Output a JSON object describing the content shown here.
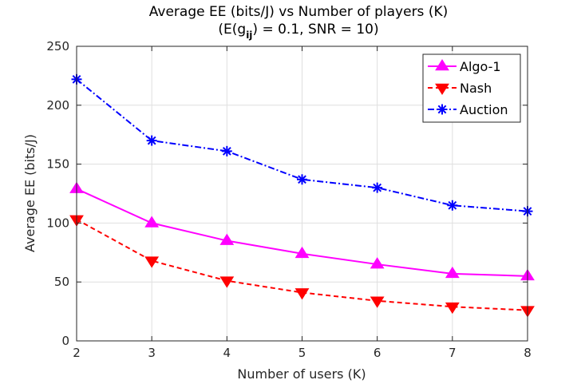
{
  "chart_data": {
    "type": "line",
    "title_line1": "Average EE (bits/J) vs Number of players (K)",
    "title_line2_parts": [
      "(E(g",
      "ij",
      ") = 0.1, SNR = 10)"
    ],
    "xlabel": "Number of users (K)",
    "ylabel": "Average EE (bits/J)",
    "x": [
      2,
      3,
      4,
      5,
      6,
      7,
      8
    ],
    "xlim": [
      2,
      8
    ],
    "ylim": [
      0,
      250
    ],
    "yticks": [
      0,
      50,
      100,
      150,
      200,
      250
    ],
    "xticks": [
      2,
      3,
      4,
      5,
      6,
      7,
      8
    ],
    "grid": true,
    "legend_position": "top-right",
    "series": [
      {
        "name": "Algo-1",
        "color": "#ff00ff",
        "line": "solid",
        "marker": "triangle-up",
        "values": [
          129,
          100,
          85,
          74,
          65,
          57,
          55
        ]
      },
      {
        "name": "Nash",
        "color": "#ff0000",
        "line": "dashed",
        "marker": "triangle-down",
        "values": [
          103,
          68,
          51,
          41,
          34,
          29,
          26
        ]
      },
      {
        "name": "Auction",
        "color": "#0000ff",
        "line": "dashdot",
        "marker": "asterisk",
        "values": [
          222,
          170,
          161,
          137,
          130,
          115,
          110
        ]
      }
    ]
  }
}
